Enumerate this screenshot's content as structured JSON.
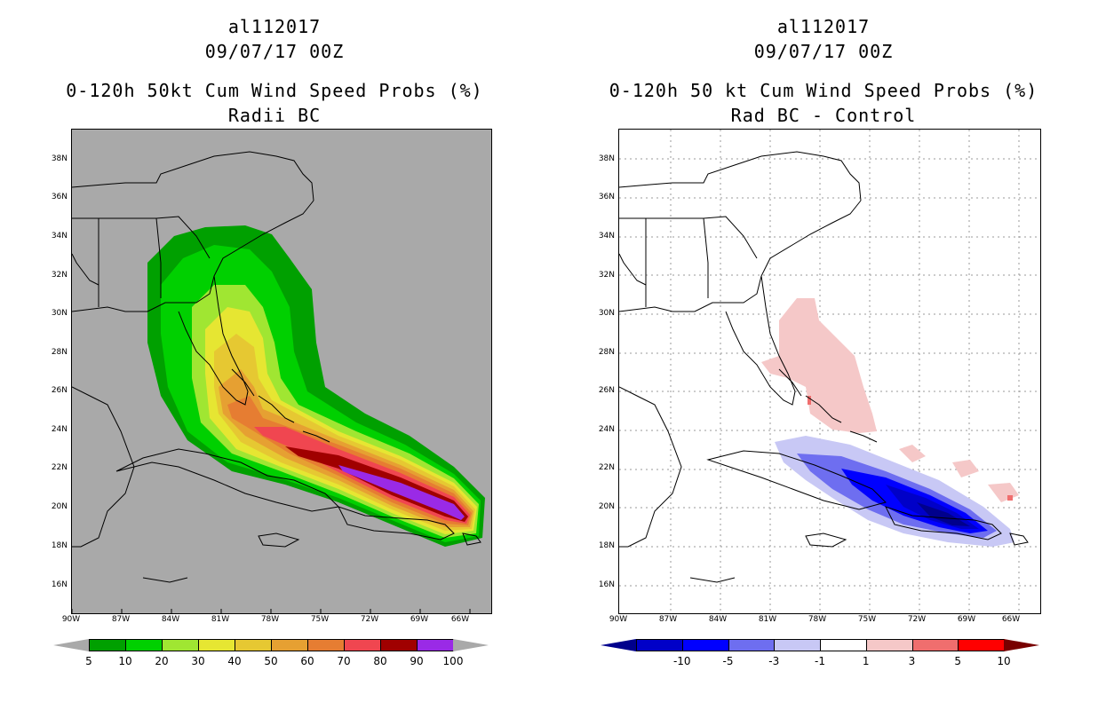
{
  "left": {
    "storm_id": "al112017",
    "datetime": "09/07/17 00Z",
    "title": "0-120h 50kt Cum Wind Speed Probs (%)",
    "subtitle": "Radii BC",
    "lat_labels": [
      "38N",
      "36N",
      "34N",
      "32N",
      "30N",
      "28N",
      "26N",
      "24N",
      "22N",
      "20N",
      "18N",
      "16N"
    ],
    "lon_labels": [
      "90W",
      "87W",
      "84W",
      "81W",
      "78W",
      "75W",
      "72W",
      "69W",
      "66W"
    ],
    "colorbar": {
      "labels": [
        "5",
        "10",
        "20",
        "30",
        "40",
        "50",
        "60",
        "70",
        "80",
        "90",
        "100"
      ],
      "colors": [
        "#00a000",
        "#00d000",
        "#a0e632",
        "#e6e632",
        "#e6c832",
        "#e6a032",
        "#e67d32",
        "#f04650",
        "#a00000",
        "#9a2ae6"
      ],
      "end_color": "#a9a9a9"
    }
  },
  "right": {
    "storm_id": "al112017",
    "datetime": "09/07/17 00Z",
    "title": "0-120h 50 kt Cum Wind Speed Probs (%)",
    "subtitle": "Rad BC - Control",
    "lat_labels": [
      "38N",
      "36N",
      "34N",
      "32N",
      "30N",
      "28N",
      "26N",
      "24N",
      "22N",
      "20N",
      "18N",
      "16N"
    ],
    "lon_labels": [
      "90W",
      "87W",
      "84W",
      "81W",
      "78W",
      "75W",
      "72W",
      "69W",
      "66W"
    ],
    "colorbar": {
      "labels": [
        "-10",
        "-5",
        "-3",
        "-1",
        "1",
        "3",
        "5",
        "10"
      ],
      "colors": [
        "#0000c8",
        "#0000ff",
        "#6e6ef0",
        "#c8c8f5",
        "#ffffff",
        "#f5c8c8",
        "#f06e6e",
        "#ff0000"
      ],
      "low_end_color": "#00008c",
      "high_end_color": "#780000"
    }
  }
}
